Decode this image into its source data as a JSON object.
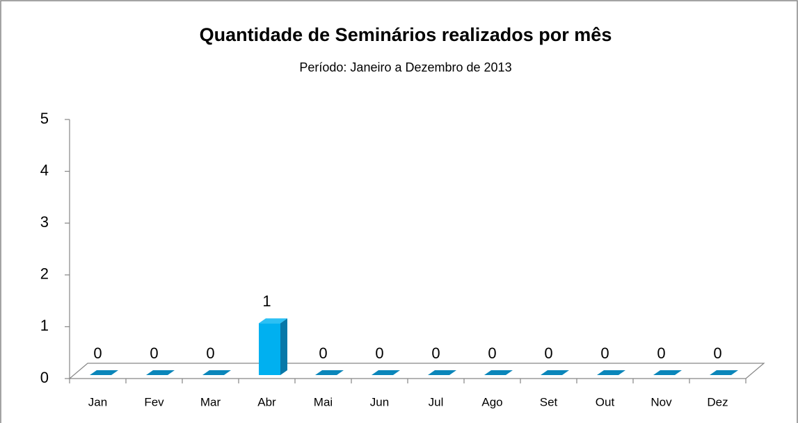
{
  "chart_data": {
    "type": "bar3d",
    "title": "Quantidade de Seminários realizados por mês",
    "subtitle": "Período: Janeiro a Dezembro de 2013",
    "categories": [
      "Jan",
      "Fev",
      "Mar",
      "Abr",
      "Mai",
      "Jun",
      "Jul",
      "Ago",
      "Set",
      "Out",
      "Nov",
      "Dez"
    ],
    "values": [
      0,
      0,
      0,
      1,
      0,
      0,
      0,
      0,
      0,
      0,
      0,
      0
    ],
    "color": "#00b0f0",
    "ylim": [
      0,
      5
    ],
    "yticks": [
      0,
      1,
      2,
      3,
      4,
      5
    ],
    "grid": false
  }
}
